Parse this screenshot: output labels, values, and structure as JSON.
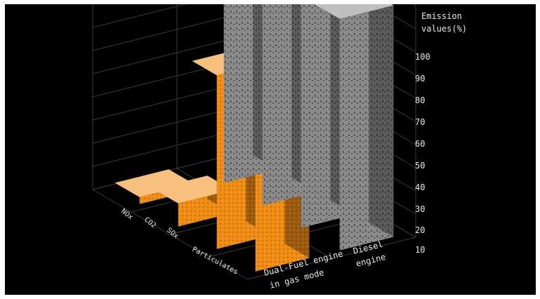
{
  "chart_data": {
    "type": "bar",
    "view": "3d",
    "categories": [
      "NOx",
      "CO2",
      "SOx",
      "Particulates"
    ],
    "series": [
      {
        "name": "Dual-Fuel engine in gas mode",
        "values": [
          85,
          75,
          10,
          3
        ]
      },
      {
        "name": "Diesel engine",
        "values": [
          100,
          100,
          100,
          100
        ]
      }
    ],
    "ylabel": "Emission values(%)",
    "ylabel_lines": [
      "Emission",
      "values(%)"
    ],
    "series_label_lines": [
      [
        "Dual-Fuel engine",
        "in gas mode"
      ],
      [
        "Diesel",
        "engine"
      ]
    ],
    "y_ticks": [
      10,
      20,
      30,
      40,
      50,
      60,
      70,
      80,
      90,
      100
    ],
    "ylim": [
      0,
      100
    ],
    "grid": true,
    "colors": {
      "background": "#000000",
      "grid": "#3a3a3a",
      "dual_fuel": "#f08c12",
      "diesel": "#8a8a8a",
      "text": "#e8e8e8"
    }
  }
}
